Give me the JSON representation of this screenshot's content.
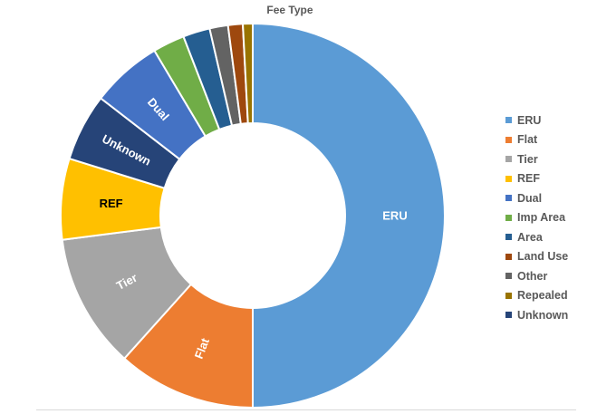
{
  "chart_data": {
    "type": "donut",
    "title": "Fee Type",
    "legend_position": "right",
    "series": [
      {
        "name": "ERU",
        "value": 48.5,
        "color": "#5B9BD5",
        "label": "ERU",
        "label_color": "#ffffff"
      },
      {
        "name": "Flat",
        "value": 11.3,
        "color": "#ED7D31",
        "label": "Flat",
        "label_color": "#ffffff"
      },
      {
        "name": "Tier",
        "value": 11.0,
        "color": "#A5A5A5",
        "label": "Tier",
        "label_color": "#ffffff"
      },
      {
        "name": "REF",
        "value": 6.6,
        "color": "#FFC000",
        "label": "REF",
        "label_color": "#000000"
      },
      {
        "name": "Unknown",
        "value": 5.5,
        "color": "#264478",
        "label": "Unknown",
        "label_color": "#ffffff"
      },
      {
        "name": "Dual",
        "value": 5.8,
        "color": "#4472C4",
        "label": "Dual",
        "label_color": "#ffffff"
      },
      {
        "name": "Imp Area",
        "value": 2.6,
        "color": "#70AD47",
        "label": "",
        "label_color": "#ffffff"
      },
      {
        "name": "Area",
        "value": 2.2,
        "color": "#255E91",
        "label": "",
        "label_color": "#ffffff"
      },
      {
        "name": "Other",
        "value": 1.5,
        "color": "#636363",
        "label": "",
        "label_color": "#ffffff"
      },
      {
        "name": "Land Use",
        "value": 1.2,
        "color": "#9E480E",
        "label": "",
        "label_color": "#ffffff"
      },
      {
        "name": "Repealed",
        "value": 0.8,
        "color": "#997300",
        "label": "",
        "label_color": "#ffffff"
      }
    ],
    "legend_order": [
      "ERU",
      "Flat",
      "Tier",
      "REF",
      "Dual",
      "Imp Area",
      "Area",
      "Land Use",
      "Other",
      "Repealed",
      "Unknown"
    ]
  }
}
